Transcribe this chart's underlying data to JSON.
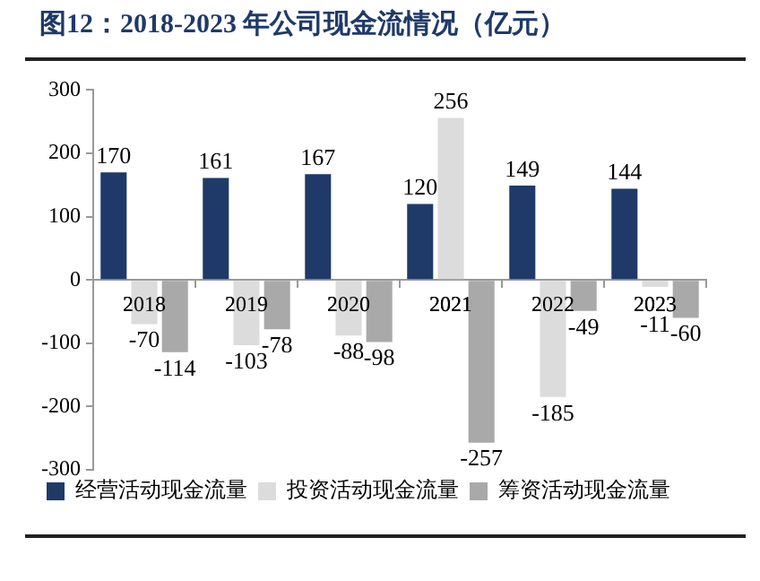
{
  "chart_data": {
    "type": "bar",
    "title": "图12：2018-2023 年公司现金流情况（亿元）",
    "categories": [
      "2018",
      "2019",
      "2020",
      "2021",
      "2022",
      "2023"
    ],
    "series": [
      {
        "name": "经营活动现金流量",
        "color": "#1f3a68",
        "values": [
          170,
          161,
          167,
          120,
          149,
          144
        ]
      },
      {
        "name": "投资活动现金流量",
        "color": "#dcdcdc",
        "values": [
          -70,
          -103,
          -88,
          256,
          -185,
          -11
        ]
      },
      {
        "name": "筹资活动现金流量",
        "color": "#a9a9a9",
        "values": [
          -114,
          -78,
          -98,
          -257,
          -49,
          -60
        ]
      }
    ],
    "ylim": [
      -300,
      300
    ],
    "yticks": [
      -300,
      -200,
      -100,
      0,
      100,
      200,
      300
    ],
    "grid": false,
    "legend": "bottom",
    "data_labels": true
  }
}
